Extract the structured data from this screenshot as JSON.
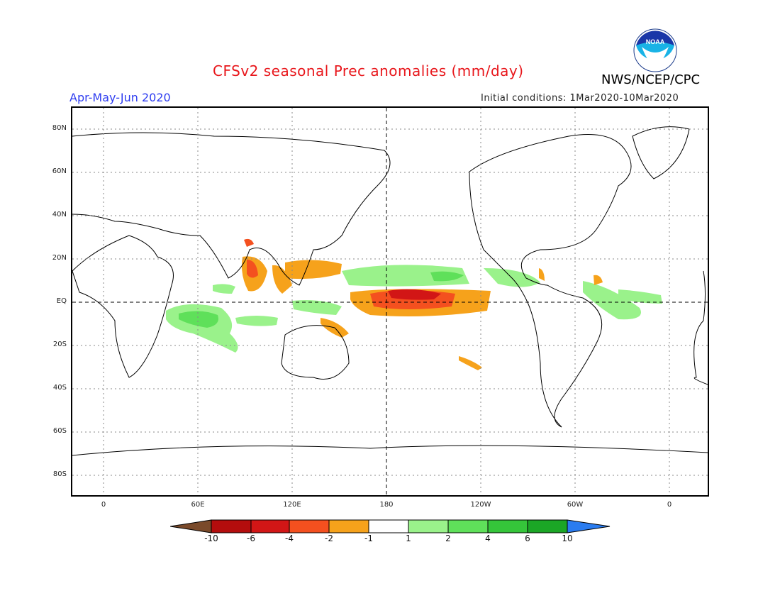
{
  "header": {
    "title": "CFSv2 seasonal Prec anomalies (mm/day)",
    "agency": "NWS/NCEP/CPC",
    "logo_text": "NOAA",
    "season": "Apr-May-Jun 2020",
    "initial_conditions": "Initial conditions: 1Mar2020-10Mar2020"
  },
  "axes": {
    "lat_labels": [
      "80N",
      "60N",
      "40N",
      "20N",
      "EQ",
      "20S",
      "40S",
      "60S",
      "80S"
    ],
    "lon_labels": [
      "0",
      "60E",
      "120E",
      "180",
      "120W",
      "60W",
      "0"
    ]
  },
  "colorbar": {
    "labels": [
      "-10",
      "-6",
      "-4",
      "-2",
      "-1",
      "1",
      "2",
      "4",
      "6",
      "10"
    ],
    "colors": [
      "#7a4a2a",
      "#b40d0d",
      "#d21616",
      "#f4501f",
      "#f6a21b",
      "#ffffff",
      "#9af28b",
      "#5fe05a",
      "#35c53a",
      "#1ba626",
      "#2a7cf0"
    ]
  },
  "colors": {
    "title": "#e8161b",
    "season": "#2d3cf0",
    "grid": "#888888",
    "coast": "#000000"
  }
}
